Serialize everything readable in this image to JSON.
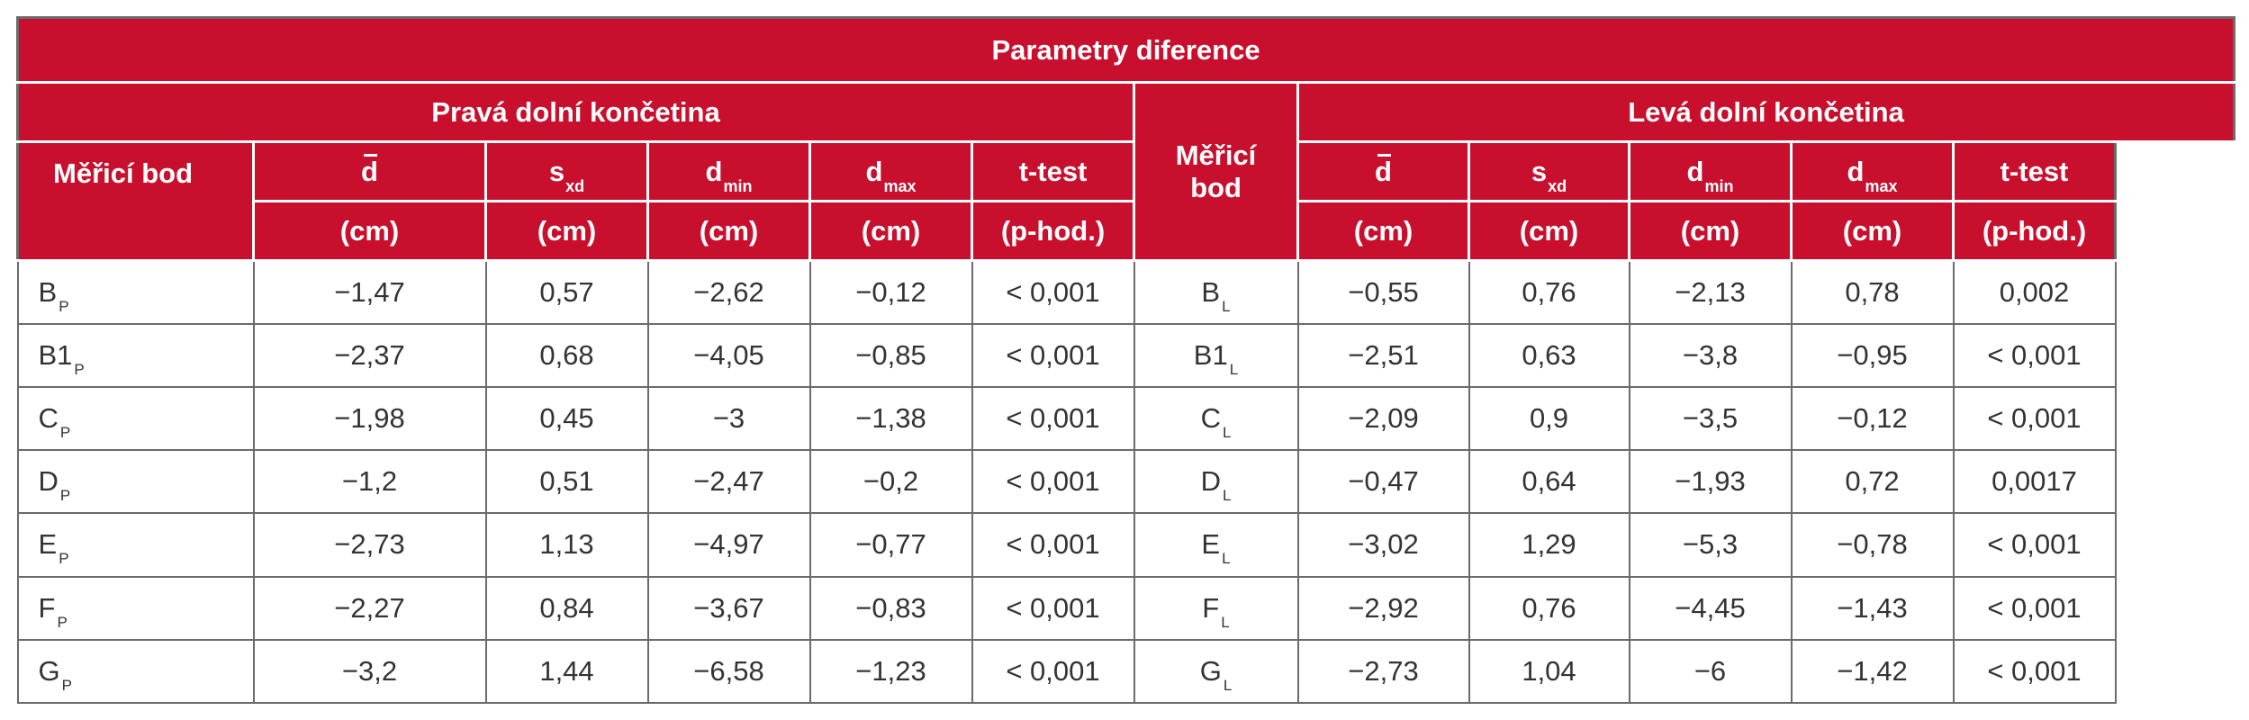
{
  "table": {
    "title": "Parametry diference",
    "group_right": "Pravá dolní končetina",
    "group_left": "Levá dolní končetina",
    "col_point": "Měřicí bod",
    "col_point_mid_line1": "Měřicí",
    "col_point_mid_line2": "bod",
    "stats": {
      "dmean": "d",
      "sxd": "s",
      "sxd_sub": "xd",
      "dmin": "d",
      "dmin_sub": "min",
      "dmax": "d",
      "dmax_sub": "max",
      "ttest": "t-test"
    },
    "units": {
      "cm": "(cm)",
      "p": "(p-hod.)"
    },
    "rows": [
      {
        "rp": "B",
        "rps": "P",
        "r": [
          "−1,47",
          "0,57",
          "−2,62",
          "−0,12",
          "< 0,001"
        ],
        "lp": "B",
        "lps": "L",
        "l": [
          "−0,55",
          "0,76",
          "−2,13",
          "0,78",
          "0,002"
        ]
      },
      {
        "rp": "B1",
        "rps": "P",
        "r": [
          "−2,37",
          "0,68",
          "−4,05",
          "−0,85",
          "< 0,001"
        ],
        "lp": "B1",
        "lps": "L",
        "l": [
          "−2,51",
          "0,63",
          "−3,8",
          "−0,95",
          "< 0,001"
        ]
      },
      {
        "rp": "C",
        "rps": "P",
        "r": [
          "−1,98",
          "0,45",
          "−3",
          "−1,38",
          "< 0,001"
        ],
        "lp": "C",
        "lps": "L",
        "l": [
          "−2,09",
          "0,9",
          "−3,5",
          "−0,12",
          "< 0,001"
        ]
      },
      {
        "rp": "D",
        "rps": "P",
        "r": [
          "−1,2",
          "0,51",
          "−2,47",
          "−0,2",
          "< 0,001"
        ],
        "lp": "D",
        "lps": "L",
        "l": [
          "−0,47",
          "0,64",
          "−1,93",
          "0,72",
          "0,0017"
        ]
      },
      {
        "rp": "E",
        "rps": "P",
        "r": [
          "−2,73",
          "1,13",
          "−4,97",
          "−0,77",
          "< 0,001"
        ],
        "lp": "E",
        "lps": "L",
        "l": [
          "−3,02",
          "1,29",
          "−5,3",
          "−0,78",
          "< 0,001"
        ]
      },
      {
        "rp": "F",
        "rps": "P",
        "r": [
          "−2,27",
          "0,84",
          "−3,67",
          "−0,83",
          "< 0,001"
        ],
        "lp": "F",
        "lps": "L",
        "l": [
          "−2,92",
          "0,76",
          "−4,45",
          "−1,43",
          "< 0,001"
        ]
      },
      {
        "rp": "G",
        "rps": "P",
        "r": [
          "−3,2",
          "1,44",
          "−6,58",
          "−1,23",
          "< 0,001"
        ],
        "lp": "G",
        "lps": "L",
        "l": [
          "−2,73",
          "1,04",
          "−6",
          "−1,42",
          "< 0,001"
        ]
      }
    ]
  },
  "colors": {
    "header_bg": "#c8102e",
    "header_text": "#ffffff",
    "grid": "#6b6b6b"
  }
}
